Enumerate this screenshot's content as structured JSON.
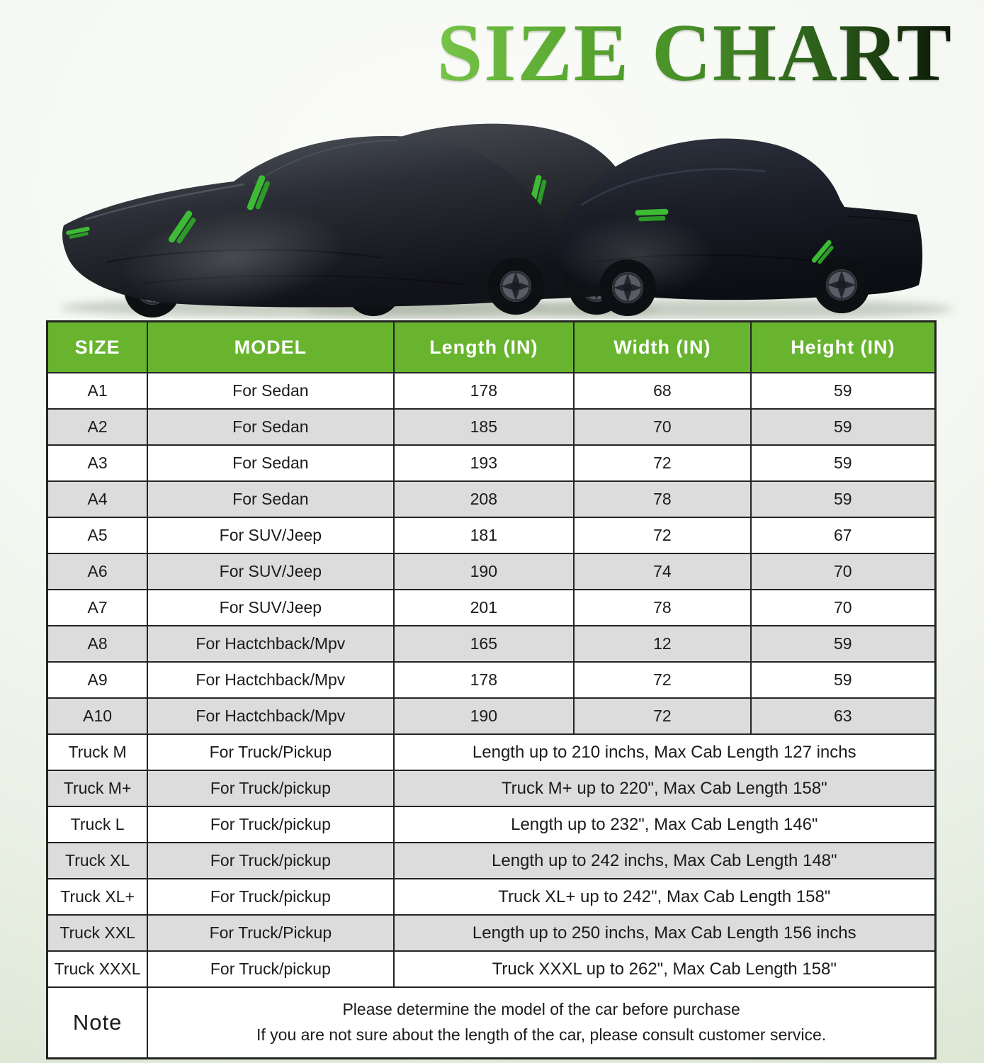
{
  "title": "SIZE CHART",
  "hero": {
    "description": "Three vehicles covered by black waterproof car covers with green zipper accents",
    "vehicles": [
      "sedan-cover",
      "suv-cover",
      "pickup-truck-cover"
    ]
  },
  "table": {
    "headers": [
      "SIZE",
      "MODEL",
      "Length (IN)",
      "Width (IN)",
      "Height (IN)"
    ],
    "rows": [
      {
        "size": "A1",
        "model": "For Sedan",
        "length": "178",
        "width": "68",
        "height": "59",
        "shaded": false
      },
      {
        "size": "A2",
        "model": "For Sedan",
        "length": "185",
        "width": "70",
        "height": "59",
        "shaded": true
      },
      {
        "size": "A3",
        "model": "For Sedan",
        "length": "193",
        "width": "72",
        "height": "59",
        "shaded": false
      },
      {
        "size": "A4",
        "model": "For Sedan",
        "length": "208",
        "width": "78",
        "height": "59",
        "shaded": true
      },
      {
        "size": "A5",
        "model": "For SUV/Jeep",
        "length": "181",
        "width": "72",
        "height": "67",
        "shaded": false
      },
      {
        "size": "A6",
        "model": "For SUV/Jeep",
        "length": "190",
        "width": "74",
        "height": "70",
        "shaded": true
      },
      {
        "size": "A7",
        "model": "For SUV/Jeep",
        "length": "201",
        "width": "78",
        "height": "70",
        "shaded": false
      },
      {
        "size": "A8",
        "model": "For Hactchback/Mpv",
        "length": "165",
        "width": "12",
        "height": "59",
        "shaded": true
      },
      {
        "size": "A9",
        "model": "For Hactchback/Mpv",
        "length": "178",
        "width": "72",
        "height": "59",
        "shaded": false
      },
      {
        "size": "A10",
        "model": "For Hactchback/Mpv",
        "length": "190",
        "width": "72",
        "height": "63",
        "shaded": true
      },
      {
        "size": "Truck M",
        "model": "For Truck/Pickup",
        "span": "Length up to 210 inchs, Max Cab Length 127 inchs",
        "shaded": false
      },
      {
        "size": "Truck M+",
        "model": "For Truck/pickup",
        "span": "Truck M+ up to 220\", Max Cab Length 158\"",
        "shaded": true
      },
      {
        "size": "Truck L",
        "model": "For Truck/pickup",
        "span": "Length  up to 232\", Max Cab Length 146\"",
        "shaded": false
      },
      {
        "size": "Truck XL",
        "model": "For Truck/pickup",
        "span": "Length up to 242 inchs, Max Cab Length 148\"",
        "shaded": true
      },
      {
        "size": "Truck XL+",
        "model": "For Truck/pickup",
        "span": "Truck XL+ up to 242\", Max Cab Length 158\"",
        "shaded": false
      },
      {
        "size": "Truck XXL",
        "model": "For Truck/Pickup",
        "span": "Length up to 250 inchs, Max Cab Length 156 inchs",
        "shaded": true
      },
      {
        "size": "Truck XXXL",
        "model": "For Truck/pickup",
        "span": "Truck XXXL up to 262\", Max Cab Length 158\"",
        "shaded": false
      }
    ],
    "note": {
      "label": "Note",
      "line1": "Please determine the model of the car before purchase",
      "line2": "If you are not sure about the length of the car, please consult customer service."
    }
  },
  "colors": {
    "header_green": "#68b42e",
    "shaded_row": "#dcdcdc",
    "border": "#242424",
    "zipper_green": "#3dbb35",
    "title_gradient_start": "#76c447",
    "title_gradient_end": "#0a1406"
  }
}
